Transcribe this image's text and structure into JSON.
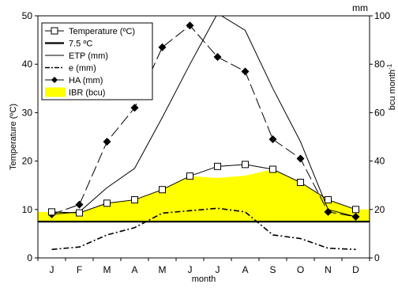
{
  "chart_data": {
    "type": "line",
    "categories": [
      "J",
      "F",
      "M",
      "A",
      "M",
      "J",
      "J",
      "A",
      "S",
      "O",
      "N",
      "D"
    ],
    "xlabel": "month",
    "y_left": {
      "label": "Temperature (ºC)",
      "lim": [
        0,
        50
      ],
      "ticks": [
        0,
        10,
        20,
        30,
        40,
        50
      ]
    },
    "y_right": {
      "unit_label": "mm",
      "lim": [
        0,
        100
      ],
      "ticks": [
        0,
        20,
        40,
        60,
        80,
        100
      ],
      "side_label": "bcu month-1"
    },
    "series": [
      {
        "name": "Temperature (ºC)",
        "axis": "left",
        "style": "line-open-square",
        "color": "#000000",
        "values": [
          9.5,
          9.3,
          11.3,
          12.0,
          14.1,
          16.9,
          18.9,
          19.3,
          18.3,
          15.6,
          12.0,
          10.0
        ]
      },
      {
        "name": "7.5 ºC",
        "axis": "left",
        "style": "thick-line",
        "color": "#000000",
        "values": [
          7.5,
          7.5,
          7.5,
          7.5,
          7.5,
          7.5,
          7.5,
          7.5,
          7.5,
          7.5,
          7.5,
          7.5
        ]
      },
      {
        "name": "ETP (mm)",
        "axis": "right",
        "style": "thin-line",
        "color": "#000000",
        "values": [
          18,
          19,
          29,
          37,
          58,
          80,
          101,
          94,
          70,
          48,
          20,
          17
        ]
      },
      {
        "name": "e (mm)",
        "axis": "right",
        "style": "dash-dot",
        "color": "#000000",
        "values": [
          3.5,
          4.5,
          9.5,
          12.5,
          18.5,
          19.5,
          20.5,
          19.0,
          9.5,
          8.0,
          4.0,
          3.5
        ]
      },
      {
        "name": "HA (mm)",
        "axis": "right",
        "style": "long-dash-diamond",
        "color": "#000000",
        "values": [
          18,
          22,
          48,
          62,
          87,
          96,
          83,
          77,
          49,
          41,
          19,
          17
        ]
      },
      {
        "name": "IBR (bcu)",
        "axis": "left",
        "style": "area",
        "color": "#ffff00",
        "values": [
          9.5,
          9.3,
          11.3,
          12.0,
          14.1,
          16.9,
          16.5,
          17.0,
          18.3,
          15.6,
          12.0,
          10.0
        ]
      }
    ],
    "legend_position": "top-left",
    "grid": false
  }
}
